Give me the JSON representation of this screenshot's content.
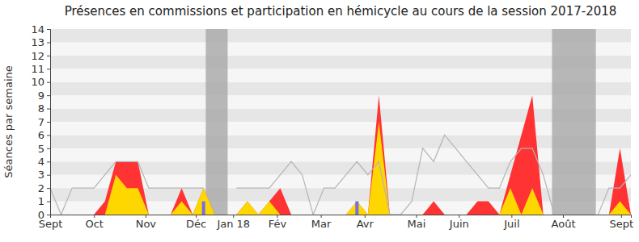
{
  "chart_data": {
    "type": "area",
    "title": "Présences en commissions et participation en hémicycle au cours de la session 2017-2018",
    "y_label": "Séances par semaine",
    "x": [
      0,
      1,
      2,
      3,
      4,
      5,
      6,
      7,
      8,
      9,
      10,
      11,
      12,
      13,
      14,
      15,
      16,
      17,
      18,
      19,
      20,
      21,
      22,
      23,
      24,
      25,
      26,
      27,
      28,
      29,
      30,
      31,
      32,
      33,
      34,
      35,
      36,
      37,
      38,
      39,
      40,
      41,
      42,
      43,
      44,
      45,
      46,
      47,
      48,
      49,
      50,
      51,
      52,
      53
    ],
    "xlim": [
      0,
      53
    ],
    "xticks": [
      {
        "value": 0,
        "label": "Sept"
      },
      {
        "value": 4,
        "label": "Oct"
      },
      {
        "value": 8.7,
        "label": "Nov"
      },
      {
        "value": 13.3,
        "label": "Déc"
      },
      {
        "value": 16.7,
        "label": "Jan 18"
      },
      {
        "value": 20.7,
        "label": "Fév"
      },
      {
        "value": 24.7,
        "label": "Mar"
      },
      {
        "value": 28.7,
        "label": "Avr"
      },
      {
        "value": 33.4,
        "label": "Mai"
      },
      {
        "value": 37.3,
        "label": "Juin"
      },
      {
        "value": 42.1,
        "label": "Juil"
      },
      {
        "value": 46.8,
        "label": "Août"
      },
      {
        "value": 52.1,
        "label": "Sept"
      }
    ],
    "ylim": [
      0,
      14
    ],
    "yticks": [
      0,
      1,
      2,
      3,
      4,
      5,
      6,
      7,
      8,
      9,
      10,
      11,
      12,
      13,
      14
    ],
    "grid": true,
    "shaded_ranges": [
      [
        14.2,
        16.2
      ],
      [
        45.8,
        49.8
      ]
    ],
    "series": [
      {
        "type": "area",
        "color": "#ff3333",
        "values": [
          0,
          0,
          0,
          0,
          0,
          1,
          4,
          4,
          4,
          0,
          0,
          0,
          2,
          0,
          2,
          0,
          0,
          0,
          1,
          0,
          1,
          2,
          0,
          0,
          0,
          0,
          0,
          0,
          1,
          0,
          9,
          0,
          0,
          0,
          0,
          1,
          0,
          0,
          0,
          1,
          1,
          0,
          3,
          6,
          9,
          0,
          0,
          0,
          0,
          0,
          0,
          0,
          5,
          0
        ]
      },
      {
        "type": "area",
        "color": "#ffd700",
        "values": [
          0,
          0,
          0,
          0,
          0,
          0,
          3,
          2,
          2,
          0,
          0,
          0,
          1,
          0,
          2,
          0,
          0,
          0,
          1,
          0,
          1,
          0,
          0,
          0,
          0,
          0,
          0,
          0,
          1,
          0,
          7,
          0,
          0,
          0,
          0,
          0,
          0,
          0,
          0,
          0,
          0,
          0,
          2,
          0,
          2,
          0,
          0,
          0,
          0,
          0,
          0,
          0,
          1,
          0
        ]
      },
      {
        "type": "bar",
        "color": "#6f6fe8",
        "values": [
          null,
          null,
          null,
          null,
          null,
          null,
          null,
          null,
          null,
          null,
          null,
          null,
          null,
          null,
          1,
          null,
          null,
          null,
          null,
          null,
          null,
          null,
          null,
          null,
          null,
          null,
          null,
          null,
          1,
          null,
          null,
          null,
          null,
          null,
          null,
          null,
          null,
          null,
          null,
          null,
          null,
          null,
          null,
          null,
          null,
          null,
          null,
          null,
          null,
          null,
          null,
          null,
          null,
          null
        ]
      },
      {
        "type": "line",
        "color": "#b4b4b4",
        "values": [
          2,
          0,
          2,
          2,
          2,
          3,
          4,
          4,
          4,
          2,
          2,
          2,
          2,
          2,
          2,
          null,
          null,
          2,
          2,
          2,
          2,
          3,
          4,
          3,
          0,
          2,
          2,
          3,
          4,
          3,
          4,
          0,
          0,
          1,
          5,
          4,
          6,
          5,
          4,
          3,
          2,
          2,
          4,
          5,
          5,
          3,
          0,
          null,
          null,
          null,
          0,
          2,
          2,
          3
        ]
      }
    ]
  }
}
